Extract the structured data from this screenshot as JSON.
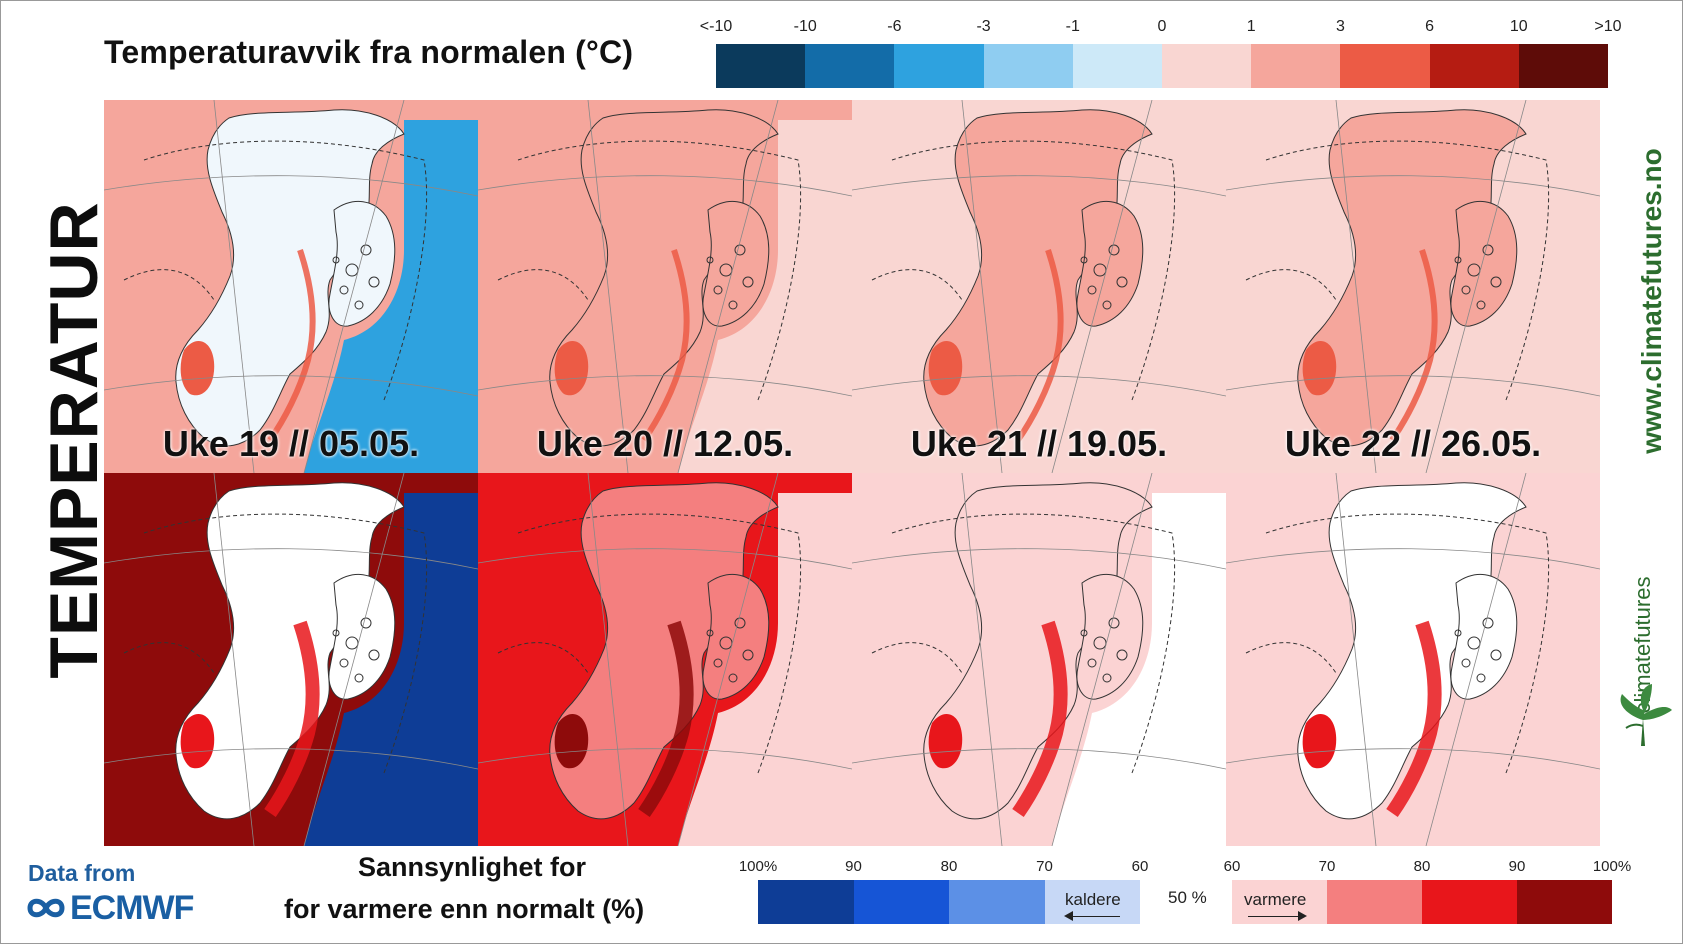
{
  "title": "Temperaturavvik fra normalen (°C)",
  "side_title": "TEMPERATUR",
  "website": "www.climatefutures.no",
  "logo_text": "climatefutures",
  "data_from": "Data from",
  "provider": "ECMWF",
  "probability_label_line1": "Sannsynlighet for",
  "probability_label_line2": "for varmere enn normalt (%)",
  "temperature_scale": {
    "tick_labels": [
      "<-10",
      "-10",
      "-6",
      "-3",
      "-1",
      "0",
      "1",
      "3",
      "6",
      "10",
      ">10"
    ],
    "colors": [
      "#0b3a5c",
      "#136ca8",
      "#2ea2df",
      "#8fcdf1",
      "#cde9f8",
      "#f9d6d2",
      "#f5a69c",
      "#ec5b45",
      "#b51c12",
      "#5e0c08"
    ]
  },
  "probability_scale": {
    "left_tick_labels": [
      "100%",
      "90",
      "80",
      "70",
      "60"
    ],
    "right_tick_labels": [
      "60",
      "70",
      "80",
      "90",
      "100%"
    ],
    "colder_colors": [
      "#0e3d96",
      "#1655d6",
      "#5c90e6",
      "#c7d8f6"
    ],
    "warmer_colors": [
      "#fbd3d3",
      "#f47f7f",
      "#e8161b",
      "#8e0b0b"
    ],
    "colder_label": "kaldere",
    "warmer_label": "varmere",
    "middle_label": "50 %"
  },
  "weeks": [
    {
      "label": "Uke 19 // 05.05."
    },
    {
      "label": "Uke 20 // 12.05."
    },
    {
      "label": "Uke 21 // 19.05."
    },
    {
      "label": "Uke 22 // 26.05."
    }
  ]
}
